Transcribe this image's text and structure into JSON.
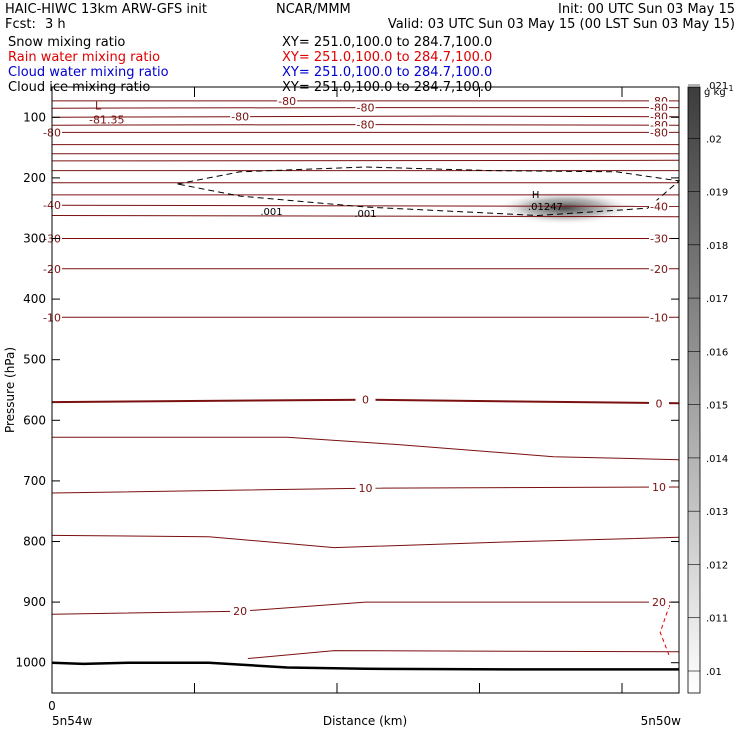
{
  "header": {
    "title_left": "HAIC-HIWC 13km ARW-GFS init",
    "org": "NCAR/MMM",
    "init": "Init: 00 UTC Sun 03 May 15",
    "fcst_label": "Fcst:",
    "fcst_value": "3 h",
    "valid": "Valid: 03 UTC Sun 03 May 15 (00 LST Sun 03 May 15)"
  },
  "fields": [
    {
      "name": "Snow mixing ratio",
      "xy": "XY= 251.0,100.0 to 284.7,100.0",
      "color": "#000000"
    },
    {
      "name": "Rain water mixing ratio",
      "xy": "XY= 251.0,100.0 to 284.7,100.0",
      "color": "#e00000"
    },
    {
      "name": "Cloud water mixing ratio",
      "xy": "XY= 251.0,100.0 to 284.7,100.0",
      "color": "#0000d0"
    },
    {
      "name": "Cloud ice mixing ratio",
      "xy": "XY= 251.0,100.0 to 284.7,100.0",
      "color": "#000000"
    }
  ],
  "chart_data": {
    "type": "cross-section",
    "ylabel": "Pressure (hPa)",
    "xlabel": "Distance (km)",
    "x_start_label": "5n54w",
    "x_end_label": "5n50w",
    "x_zero_label": "0",
    "x_range": [
      0,
      40
    ],
    "y_range": [
      1050,
      50
    ],
    "y_ticks": [
      100,
      200,
      300,
      400,
      500,
      600,
      700,
      800,
      900,
      1000
    ],
    "colorbar": {
      "unit": "g kg",
      "unit_exp": "-1",
      "labels": [
        ".01",
        ".011",
        ".012",
        ".013",
        ".014",
        ".015",
        ".016",
        ".017",
        ".018",
        ".019",
        ".02",
        ".021"
      ]
    },
    "temperature_contours": [
      {
        "label": "-80",
        "points": [
          [
            0,
            73
          ],
          [
            15,
            73
          ],
          [
            30,
            73
          ],
          [
            40,
            73
          ]
        ]
      },
      {
        "label": "-80",
        "points": [
          [
            0,
            85
          ],
          [
            20,
            84
          ],
          [
            40,
            84
          ]
        ]
      },
      {
        "label": "-80",
        "points": [
          [
            0,
            100
          ],
          [
            12,
            99
          ],
          [
            25,
            98
          ],
          [
            40,
            99
          ]
        ]
      },
      {
        "label": "-80",
        "points": [
          [
            0,
            113
          ],
          [
            20,
            112
          ],
          [
            40,
            113
          ]
        ]
      },
      {
        "label": "-80",
        "points": [
          [
            0,
            125
          ],
          [
            40,
            125
          ]
        ]
      },
      {
        "label": "",
        "points": [
          [
            0,
            145
          ],
          [
            40,
            145
          ]
        ]
      },
      {
        "label": "",
        "points": [
          [
            0,
            160
          ],
          [
            40,
            160
          ]
        ]
      },
      {
        "label": "",
        "points": [
          [
            0,
            172
          ],
          [
            40,
            171
          ]
        ]
      },
      {
        "label": "",
        "points": [
          [
            0,
            188
          ],
          [
            40,
            188
          ]
        ]
      },
      {
        "label": "",
        "points": [
          [
            0,
            208
          ],
          [
            40,
            208
          ]
        ]
      },
      {
        "label": "",
        "points": [
          [
            0,
            228
          ],
          [
            40,
            228
          ]
        ]
      },
      {
        "label": "-40",
        "points": [
          [
            0,
            245
          ],
          [
            40,
            247
          ]
        ]
      },
      {
        "label": "",
        "points": [
          [
            0,
            262
          ],
          [
            40,
            264
          ]
        ]
      },
      {
        "label": "-30",
        "points": [
          [
            0,
            300
          ],
          [
            40,
            300
          ]
        ]
      },
      {
        "label": "-20",
        "points": [
          [
            0,
            350
          ],
          [
            40,
            350
          ]
        ]
      },
      {
        "label": "-10",
        "points": [
          [
            0,
            430
          ],
          [
            40,
            430
          ]
        ]
      },
      {
        "label": "0",
        "points": [
          [
            0,
            570
          ],
          [
            20,
            566
          ],
          [
            40,
            572
          ]
        ]
      },
      {
        "label": "",
        "points": [
          [
            0,
            628
          ],
          [
            15,
            628
          ],
          [
            22,
            640
          ],
          [
            32,
            660
          ],
          [
            40,
            665
          ]
        ]
      },
      {
        "label": "10",
        "points": [
          [
            0,
            720
          ],
          [
            20,
            712
          ],
          [
            40,
            710
          ]
        ]
      },
      {
        "label": "",
        "points": [
          [
            0,
            790
          ],
          [
            10,
            792
          ],
          [
            18,
            810
          ],
          [
            30,
            800
          ],
          [
            40,
            793
          ]
        ]
      },
      {
        "label": "20",
        "points": [
          [
            0,
            920
          ],
          [
            12,
            915
          ],
          [
            20,
            900
          ],
          [
            40,
            900
          ]
        ]
      },
      {
        "label": "",
        "points": [
          [
            12.5,
            993
          ],
          [
            18,
            980
          ],
          [
            40,
            982
          ]
        ]
      }
    ],
    "cloud_ice_contour": {
      "label": ".001",
      "points": [
        [
          8,
          210
        ],
        [
          12,
          190
        ],
        [
          20,
          182
        ],
        [
          28,
          188
        ],
        [
          36,
          190
        ],
        [
          40,
          205
        ],
        [
          38,
          250
        ],
        [
          31,
          262
        ],
        [
          20,
          248
        ],
        [
          12,
          230
        ],
        [
          8,
          210
        ]
      ]
    },
    "rain_contour": {
      "points": [
        [
          39.4,
          905
        ],
        [
          38.8,
          950
        ],
        [
          39.4,
          990
        ]
      ]
    },
    "max_label": {
      "marker": "H",
      "value": ".01247",
      "x": 31,
      "p": 250
    },
    "min_label": {
      "marker": "L",
      "value": "-81.35",
      "x": 3,
      "p": 100
    },
    "terrain": {
      "points": [
        [
          0,
          1000
        ],
        [
          2,
          1002
        ],
        [
          5,
          1000
        ],
        [
          10,
          1000
        ],
        [
          15,
          1008
        ],
        [
          20,
          1010
        ],
        [
          30,
          1011
        ],
        [
          40,
          1011
        ]
      ]
    }
  }
}
